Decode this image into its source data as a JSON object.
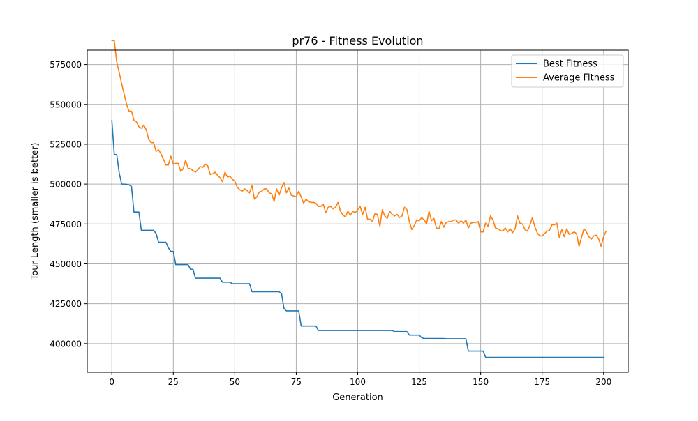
{
  "chart_data": {
    "type": "line",
    "title": "pr76 - Fitness Evolution",
    "xlabel": "Generation",
    "ylabel": "Tour Length (smaller is better)",
    "xlim": [
      -10,
      210
    ],
    "ylim": [
      382000,
      584000
    ],
    "xticks": [
      0,
      25,
      50,
      75,
      100,
      125,
      150,
      175,
      200
    ],
    "yticks": [
      400000,
      425000,
      450000,
      475000,
      500000,
      525000,
      550000,
      575000
    ],
    "grid": true,
    "legend_position": "top-right",
    "series": [
      {
        "name": "Best Fitness",
        "color": "#1f77b4",
        "points": [
          [
            0,
            540000
          ],
          [
            1,
            518500
          ],
          [
            2,
            518500
          ],
          [
            3,
            507000
          ],
          [
            4,
            500000
          ],
          [
            5,
            500000
          ],
          [
            6,
            499800
          ],
          [
            7,
            499500
          ],
          [
            8,
            498500
          ],
          [
            9,
            482500
          ],
          [
            10,
            482500
          ],
          [
            11,
            482500
          ],
          [
            12,
            471000
          ],
          [
            13,
            471000
          ],
          [
            14,
            471000
          ],
          [
            15,
            471000
          ],
          [
            16,
            471000
          ],
          [
            17,
            471000
          ],
          [
            18,
            469000
          ],
          [
            19,
            463500
          ],
          [
            20,
            463500
          ],
          [
            21,
            463500
          ],
          [
            22,
            463500
          ],
          [
            23,
            460000
          ],
          [
            24,
            457800
          ],
          [
            25,
            457800
          ],
          [
            26,
            449500
          ],
          [
            27,
            449500
          ],
          [
            28,
            449500
          ],
          [
            29,
            449500
          ],
          [
            30,
            449500
          ],
          [
            31,
            449500
          ],
          [
            32,
            446600
          ],
          [
            33,
            446600
          ],
          [
            34,
            441000
          ],
          [
            35,
            441000
          ],
          [
            36,
            441000
          ],
          [
            37,
            441000
          ],
          [
            38,
            441000
          ],
          [
            39,
            441000
          ],
          [
            40,
            441000
          ],
          [
            41,
            441000
          ],
          [
            42,
            441000
          ],
          [
            43,
            441000
          ],
          [
            44,
            441000
          ],
          [
            45,
            438500
          ],
          [
            46,
            438500
          ],
          [
            47,
            438500
          ],
          [
            48,
            438500
          ],
          [
            49,
            437500
          ],
          [
            50,
            437500
          ],
          [
            51,
            437500
          ],
          [
            52,
            437500
          ],
          [
            53,
            437500
          ],
          [
            54,
            437500
          ],
          [
            55,
            437500
          ],
          [
            56,
            437500
          ],
          [
            57,
            432500
          ],
          [
            58,
            432500
          ],
          [
            59,
            432500
          ],
          [
            60,
            432500
          ],
          [
            61,
            432500
          ],
          [
            62,
            432500
          ],
          [
            63,
            432500
          ],
          [
            64,
            432500
          ],
          [
            65,
            432500
          ],
          [
            66,
            432500
          ],
          [
            67,
            432500
          ],
          [
            68,
            432500
          ],
          [
            69,
            431500
          ],
          [
            70,
            422000
          ],
          [
            71,
            420500
          ],
          [
            72,
            420500
          ],
          [
            73,
            420500
          ],
          [
            74,
            420500
          ],
          [
            75,
            420500
          ],
          [
            76,
            420500
          ],
          [
            77,
            411000
          ],
          [
            78,
            411000
          ],
          [
            79,
            411000
          ],
          [
            80,
            411000
          ],
          [
            81,
            411000
          ],
          [
            82,
            411000
          ],
          [
            83,
            411000
          ],
          [
            84,
            408200
          ],
          [
            90,
            408200
          ],
          [
            100,
            408200
          ],
          [
            110,
            408200
          ],
          [
            114,
            408200
          ],
          [
            115,
            407500
          ],
          [
            120,
            407500
          ],
          [
            121,
            405300
          ],
          [
            125,
            405300
          ],
          [
            126,
            403700
          ],
          [
            127,
            403200
          ],
          [
            135,
            403200
          ],
          [
            136,
            403000
          ],
          [
            144,
            403000
          ],
          [
            145,
            395300
          ],
          [
            151,
            395300
          ],
          [
            152,
            391400
          ],
          [
            160,
            391400
          ],
          [
            180,
            391400
          ],
          [
            200,
            391400
          ]
        ]
      },
      {
        "name": "Average Fitness",
        "color": "#ff7f0e",
        "points": [
          [
            0,
            590000
          ],
          [
            1,
            590000
          ],
          [
            2,
            576500
          ],
          [
            3,
            570000
          ],
          [
            4,
            563000
          ],
          [
            5,
            556500
          ],
          [
            6,
            550000
          ],
          [
            7,
            545700
          ],
          [
            8,
            545700
          ],
          [
            9,
            540000
          ],
          [
            10,
            539000
          ],
          [
            11,
            536000
          ],
          [
            12,
            535000
          ],
          [
            13,
            537000
          ],
          [
            14,
            534000
          ],
          [
            15,
            528000
          ],
          [
            16,
            526000
          ],
          [
            17,
            526000
          ],
          [
            18,
            520500
          ],
          [
            19,
            521500
          ],
          [
            20,
            519000
          ],
          [
            21,
            515500
          ],
          [
            22,
            512000
          ],
          [
            23,
            512000
          ],
          [
            24,
            517500
          ],
          [
            25,
            512500
          ],
          [
            26,
            513000
          ],
          [
            27,
            513000
          ],
          [
            28,
            508000
          ],
          [
            29,
            509500
          ],
          [
            30,
            515000
          ],
          [
            31,
            510000
          ],
          [
            32,
            509500
          ],
          [
            33,
            508500
          ],
          [
            34,
            507500
          ],
          [
            35,
            509000
          ],
          [
            36,
            511000
          ],
          [
            37,
            510500
          ],
          [
            38,
            512500
          ],
          [
            39,
            511500
          ],
          [
            40,
            506000
          ],
          [
            41,
            506500
          ],
          [
            42,
            507500
          ],
          [
            43,
            505500
          ],
          [
            44,
            504000
          ],
          [
            45,
            501500
          ],
          [
            46,
            507500
          ],
          [
            47,
            504500
          ],
          [
            48,
            505000
          ],
          [
            49,
            503000
          ],
          [
            50,
            502000
          ],
          [
            51,
            498000
          ],
          [
            52,
            496500
          ],
          [
            53,
            495500
          ],
          [
            54,
            497000
          ],
          [
            55,
            496000
          ],
          [
            56,
            494500
          ],
          [
            57,
            499000
          ],
          [
            58,
            490500
          ],
          [
            59,
            492000
          ],
          [
            60,
            495000
          ],
          [
            61,
            495500
          ],
          [
            62,
            497000
          ],
          [
            63,
            497000
          ],
          [
            64,
            494500
          ],
          [
            65,
            494000
          ],
          [
            66,
            489000
          ],
          [
            67,
            497000
          ],
          [
            68,
            493000
          ],
          [
            69,
            497500
          ],
          [
            70,
            501000
          ],
          [
            71,
            494500
          ],
          [
            72,
            497500
          ],
          [
            73,
            493000
          ],
          [
            74,
            492500
          ],
          [
            75,
            492000
          ],
          [
            76,
            495500
          ],
          [
            77,
            492000
          ],
          [
            78,
            488000
          ],
          [
            79,
            490500
          ],
          [
            80,
            489000
          ],
          [
            81,
            488500
          ],
          [
            82,
            488500
          ],
          [
            83,
            488000
          ],
          [
            84,
            486000
          ],
          [
            85,
            486000
          ],
          [
            86,
            487500
          ],
          [
            87,
            482000
          ],
          [
            88,
            485500
          ],
          [
            89,
            486000
          ],
          [
            90,
            484500
          ],
          [
            91,
            485500
          ],
          [
            92,
            488500
          ],
          [
            93,
            483000
          ],
          [
            94,
            480500
          ],
          [
            95,
            479500
          ],
          [
            96,
            483000
          ],
          [
            97,
            480500
          ],
          [
            98,
            483000
          ],
          [
            99,
            482000
          ],
          [
            100,
            484000
          ],
          [
            101,
            486000
          ],
          [
            102,
            481000
          ],
          [
            103,
            485500
          ],
          [
            104,
            478000
          ],
          [
            105,
            478000
          ],
          [
            106,
            476500
          ],
          [
            107,
            481500
          ],
          [
            108,
            481000
          ],
          [
            109,
            473500
          ],
          [
            110,
            484000
          ],
          [
            111,
            480000
          ],
          [
            112,
            478500
          ],
          [
            113,
            483000
          ],
          [
            114,
            481000
          ],
          [
            115,
            480000
          ],
          [
            116,
            481000
          ],
          [
            117,
            479000
          ],
          [
            118,
            480000
          ],
          [
            119,
            485500
          ],
          [
            120,
            484000
          ],
          [
            121,
            476500
          ],
          [
            122,
            471500
          ],
          [
            123,
            474000
          ],
          [
            124,
            477500
          ],
          [
            125,
            477000
          ],
          [
            126,
            479000
          ],
          [
            127,
            477500
          ],
          [
            128,
            475000
          ],
          [
            129,
            483000
          ],
          [
            130,
            477000
          ],
          [
            131,
            478500
          ],
          [
            132,
            472500
          ],
          [
            133,
            472000
          ],
          [
            134,
            476500
          ],
          [
            135,
            473000
          ],
          [
            136,
            476000
          ],
          [
            137,
            476500
          ],
          [
            138,
            476500
          ],
          [
            139,
            477500
          ],
          [
            140,
            477500
          ],
          [
            141,
            475500
          ],
          [
            142,
            477000
          ],
          [
            143,
            475500
          ],
          [
            144,
            477500
          ],
          [
            145,
            472500
          ],
          [
            146,
            475500
          ],
          [
            147,
            476000
          ],
          [
            148,
            476000
          ],
          [
            149,
            476500
          ],
          [
            150,
            470000
          ],
          [
            151,
            470000
          ],
          [
            152,
            475500
          ],
          [
            153,
            473500
          ],
          [
            154,
            480000
          ],
          [
            155,
            477500
          ],
          [
            156,
            472500
          ],
          [
            157,
            472000
          ],
          [
            158,
            471000
          ],
          [
            159,
            470500
          ],
          [
            160,
            472500
          ],
          [
            161,
            470000
          ],
          [
            162,
            472000
          ],
          [
            163,
            469500
          ],
          [
            164,
            472000
          ],
          [
            165,
            480000
          ],
          [
            166,
            475500
          ],
          [
            167,
            475000
          ],
          [
            168,
            471500
          ],
          [
            169,
            470500
          ],
          [
            170,
            474000
          ],
          [
            171,
            479000
          ],
          [
            172,
            473500
          ],
          [
            173,
            469500
          ],
          [
            174,
            467500
          ],
          [
            175,
            467500
          ],
          [
            176,
            469000
          ],
          [
            177,
            470500
          ],
          [
            178,
            471000
          ],
          [
            179,
            474500
          ],
          [
            180,
            474500
          ],
          [
            181,
            475500
          ],
          [
            182,
            466500
          ],
          [
            183,
            471500
          ],
          [
            184,
            467000
          ],
          [
            185,
            472000
          ],
          [
            186,
            468500
          ],
          [
            187,
            469000
          ],
          [
            188,
            470000
          ],
          [
            189,
            469000
          ],
          [
            190,
            461000
          ],
          [
            191,
            466500
          ],
          [
            192,
            472000
          ],
          [
            193,
            470000
          ],
          [
            194,
            467000
          ],
          [
            195,
            465500
          ],
          [
            196,
            467500
          ],
          [
            197,
            468000
          ],
          [
            198,
            465500
          ],
          [
            199,
            461000
          ],
          [
            200,
            467000
          ],
          [
            201,
            470500
          ]
        ]
      }
    ]
  }
}
